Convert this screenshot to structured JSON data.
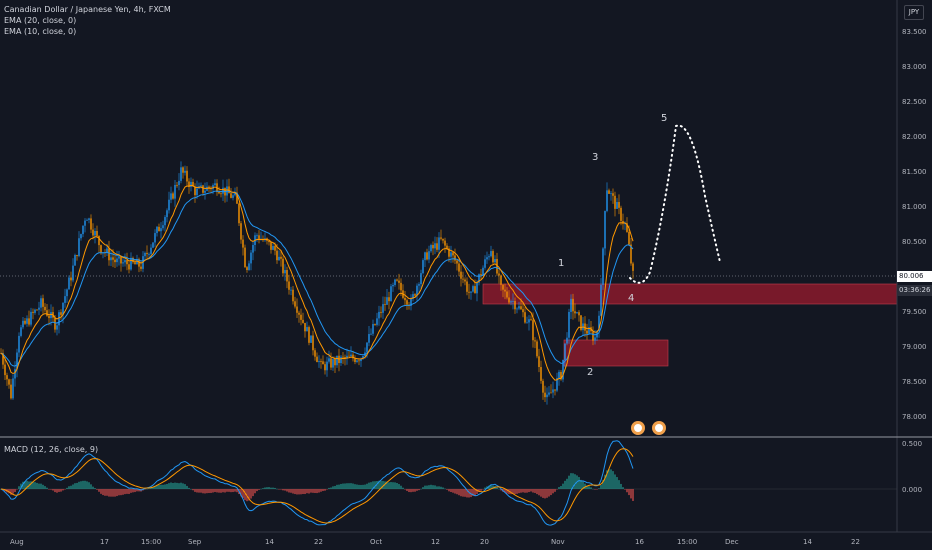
{
  "header": {
    "symbol_title": "Canadian Dollar / Japanese Yen, 4h, FXCM",
    "indicators": [
      "EMA (20, close, 0)",
      "EMA (10, close, 0)"
    ],
    "currency_badge": "JPY"
  },
  "price_axis": {
    "labels": [
      "83.500",
      "83.000",
      "82.500",
      "82.000",
      "81.500",
      "81.000",
      "80.500",
      "80.000",
      "79.500",
      "79.000",
      "78.500",
      "78.000"
    ],
    "last_price": "80.006",
    "countdown": "03:36:26"
  },
  "macd": {
    "label": "MACD (12, 26, close, 9)",
    "axis_labels": [
      "0.500",
      "0.000"
    ]
  },
  "time_axis": {
    "labels": [
      "Aug",
      "17",
      "15:00",
      "Sep",
      "14",
      "22",
      "Oct",
      "12",
      "20",
      "Nov",
      "16",
      "15:00",
      "Dec",
      "14",
      "22"
    ]
  },
  "annotations": {
    "wave_labels": [
      "1",
      "2",
      "3",
      "4",
      "5"
    ]
  },
  "colors": {
    "background": "#131722",
    "ema20": "#2196f3",
    "ema10": "#ff9800",
    "zone": "#8b1a2b",
    "macd_positive": "#26a69a",
    "macd_negative": "#ef5350"
  }
}
